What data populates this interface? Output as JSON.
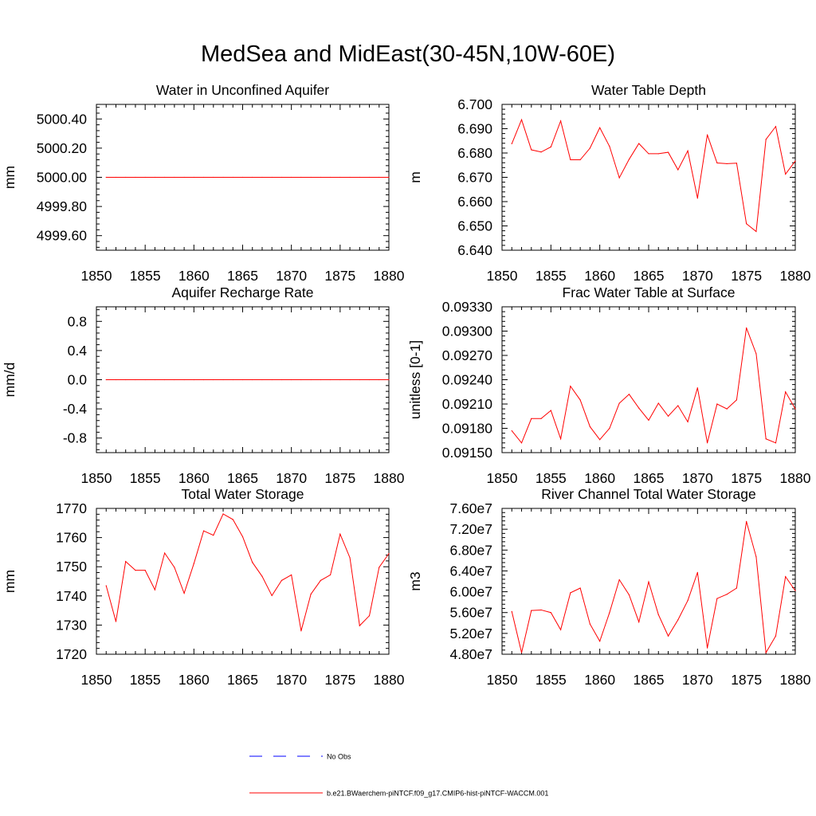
{
  "title": "MedSea and MidEast(30-45N,10W-60E)",
  "colors": {
    "model": "#ff0000",
    "obs": "#0000ff",
    "axis": "#000000"
  },
  "legend": [
    {
      "label": "No Obs",
      "style": "dashed",
      "color": "#0000ff"
    },
    {
      "label": "b.e21.BWaerchem-piNTCF.f09_g17.CMIP6-hist-piNTCF-WACCM.001",
      "style": "solid",
      "color": "#ff0000"
    }
  ],
  "chart_data": [
    {
      "type": "line",
      "title": "Water in Unconfined Aquifer",
      "ylabel": "mm",
      "xlim": [
        1850,
        1880
      ],
      "ylim": [
        4999.5,
        5000.5
      ],
      "yticks": [
        4999.6,
        4999.8,
        5000.0,
        5000.2,
        5000.4
      ],
      "ytick_labels": [
        "4999.60",
        "4999.80",
        "5000.00",
        "5000.20",
        "5000.40"
      ],
      "xticks": [
        1850,
        1855,
        1860,
        1865,
        1870,
        1875,
        1880
      ],
      "x": [
        1851,
        1852,
        1853,
        1854,
        1855,
        1856,
        1857,
        1858,
        1859,
        1860,
        1861,
        1862,
        1863,
        1864,
        1865,
        1866,
        1867,
        1868,
        1869,
        1870,
        1871,
        1872,
        1873,
        1874,
        1875,
        1876,
        1877,
        1878,
        1879,
        1880
      ],
      "y": [
        5000,
        5000,
        5000,
        5000,
        5000,
        5000,
        5000,
        5000,
        5000,
        5000,
        5000,
        5000,
        5000,
        5000,
        5000,
        5000,
        5000,
        5000,
        5000,
        5000,
        5000,
        5000,
        5000,
        5000,
        5000,
        5000,
        5000,
        5000,
        5000,
        5000
      ]
    },
    {
      "type": "line",
      "title": "Water Table Depth",
      "ylabel": "m",
      "xlim": [
        1850,
        1880
      ],
      "ylim": [
        6.64,
        6.7
      ],
      "yticks": [
        6.64,
        6.65,
        6.66,
        6.67,
        6.68,
        6.69,
        6.7
      ],
      "ytick_labels": [
        "6.640",
        "6.650",
        "6.660",
        "6.670",
        "6.680",
        "6.690",
        "6.700"
      ],
      "xticks": [
        1850,
        1855,
        1860,
        1865,
        1870,
        1875,
        1880
      ],
      "x": [
        1851,
        1852,
        1853,
        1854,
        1855,
        1856,
        1857,
        1858,
        1859,
        1860,
        1861,
        1862,
        1863,
        1864,
        1865,
        1866,
        1867,
        1868,
        1869,
        1870,
        1871,
        1872,
        1873,
        1874,
        1875,
        1876,
        1877,
        1878,
        1879,
        1880
      ],
      "y": [
        6.6838,
        6.6937,
        6.6813,
        6.6804,
        6.6825,
        6.6932,
        6.6772,
        6.6772,
        6.682,
        6.6904,
        6.6827,
        6.6698,
        6.6774,
        6.6839,
        6.6797,
        6.6797,
        6.6803,
        6.6731,
        6.6809,
        6.6614,
        6.6875,
        6.6759,
        6.6756,
        6.6758,
        6.6509,
        6.6477,
        6.6856,
        6.6909,
        6.6713,
        6.6767
      ]
    },
    {
      "type": "line",
      "title": "Aquifer Recharge Rate",
      "ylabel": "mm/d",
      "xlim": [
        1850,
        1880
      ],
      "ylim": [
        -1.0,
        1.0
      ],
      "yticks": [
        -0.8,
        -0.4,
        0.0,
        0.4,
        0.8
      ],
      "ytick_labels": [
        "-0.8",
        "-0.4",
        "0.0",
        "0.4",
        "0.8"
      ],
      "xticks": [
        1850,
        1855,
        1860,
        1865,
        1870,
        1875,
        1880
      ],
      "x": [
        1851,
        1852,
        1853,
        1854,
        1855,
        1856,
        1857,
        1858,
        1859,
        1860,
        1861,
        1862,
        1863,
        1864,
        1865,
        1866,
        1867,
        1868,
        1869,
        1870,
        1871,
        1872,
        1873,
        1874,
        1875,
        1876,
        1877,
        1878,
        1879,
        1880
      ],
      "y": [
        0,
        0,
        0,
        0,
        0,
        0,
        0,
        0,
        0,
        0,
        0,
        0,
        0,
        0,
        0,
        0,
        0,
        0,
        0,
        0,
        0,
        0,
        0,
        0,
        0,
        0,
        0,
        0,
        0,
        0
      ]
    },
    {
      "type": "line",
      "title": "Frac Water Table at Surface",
      "ylabel": "unitless [0-1]",
      "xlim": [
        1850,
        1880
      ],
      "ylim": [
        0.0915,
        0.0933
      ],
      "yticks": [
        0.0915,
        0.0918,
        0.0921,
        0.0924,
        0.0927,
        0.093,
        0.0933
      ],
      "ytick_labels": [
        "0.09150",
        "0.09180",
        "0.09210",
        "0.09240",
        "0.09270",
        "0.09300",
        "0.09330"
      ],
      "xticks": [
        1850,
        1855,
        1860,
        1865,
        1870,
        1875,
        1880
      ],
      "x": [
        1851,
        1852,
        1853,
        1854,
        1855,
        1856,
        1857,
        1858,
        1859,
        1860,
        1861,
        1862,
        1863,
        1864,
        1865,
        1866,
        1867,
        1868,
        1869,
        1870,
        1871,
        1872,
        1873,
        1874,
        1875,
        1876,
        1877,
        1878,
        1879,
        1880
      ],
      "y": [
        0.09177,
        0.09162,
        0.09192,
        0.09192,
        0.09202,
        0.09167,
        0.09232,
        0.09215,
        0.09182,
        0.09166,
        0.0918,
        0.09211,
        0.09222,
        0.09205,
        0.0919,
        0.09211,
        0.09195,
        0.09208,
        0.09188,
        0.0923,
        0.09162,
        0.0921,
        0.09204,
        0.09215,
        0.09304,
        0.09272,
        0.09167,
        0.09162,
        0.09225,
        0.09204
      ]
    },
    {
      "type": "line",
      "title": "Total Water Storage",
      "ylabel": "mm",
      "xlim": [
        1850,
        1880
      ],
      "ylim": [
        1720,
        1770
      ],
      "yticks": [
        1720,
        1730,
        1740,
        1750,
        1760,
        1770
      ],
      "ytick_labels": [
        "1720",
        "1730",
        "1740",
        "1750",
        "1760",
        "1770"
      ],
      "xticks": [
        1850,
        1855,
        1860,
        1865,
        1870,
        1875,
        1880
      ],
      "x": [
        1851,
        1852,
        1853,
        1854,
        1855,
        1856,
        1857,
        1858,
        1859,
        1860,
        1861,
        1862,
        1863,
        1864,
        1865,
        1866,
        1867,
        1868,
        1869,
        1870,
        1871,
        1872,
        1873,
        1874,
        1875,
        1876,
        1877,
        1878,
        1879,
        1880
      ],
      "y": [
        1743.5,
        1731.2,
        1751.8,
        1748.8,
        1748.8,
        1742.1,
        1754.7,
        1749.8,
        1740.9,
        1751.1,
        1762.3,
        1760.8,
        1768.1,
        1766.2,
        1760.3,
        1751.5,
        1746.7,
        1740.1,
        1745.3,
        1747.2,
        1728.0,
        1740.6,
        1745.3,
        1747.2,
        1761.2,
        1753.1,
        1729.8,
        1733.2,
        1749.8,
        1754.5
      ]
    },
    {
      "type": "line",
      "title": "River Channel Total Water Storage",
      "ylabel": "m3",
      "xlim": [
        1850,
        1880
      ],
      "ylim": [
        48000000,
        76000000
      ],
      "yticks": [
        48000000,
        52000000,
        56000000,
        60000000,
        64000000,
        68000000,
        72000000,
        76000000
      ],
      "ytick_labels": [
        "4.80e7",
        "5.20e7",
        "5.60e7",
        "6.00e7",
        "6.40e7",
        "6.80e7",
        "7.20e7",
        "7.60e7"
      ],
      "xticks": [
        1850,
        1855,
        1860,
        1865,
        1870,
        1875,
        1880
      ],
      "x": [
        1851,
        1852,
        1853,
        1854,
        1855,
        1856,
        1857,
        1858,
        1859,
        1860,
        1861,
        1862,
        1863,
        1864,
        1865,
        1866,
        1867,
        1868,
        1869,
        1870,
        1871,
        1872,
        1873,
        1874,
        1875,
        1876,
        1877,
        1878,
        1879,
        1880
      ],
      "y": [
        56200000,
        48300000,
        56400000,
        56500000,
        56000000,
        52700000,
        59800000,
        60700000,
        53800000,
        50500000,
        56000000,
        62300000,
        59400000,
        54200000,
        61900000,
        55600000,
        51500000,
        54600000,
        58300000,
        63700000,
        49200000,
        58700000,
        59500000,
        60700000,
        73500000,
        66700000,
        48300000,
        51500000,
        62900000,
        60200000
      ]
    }
  ]
}
